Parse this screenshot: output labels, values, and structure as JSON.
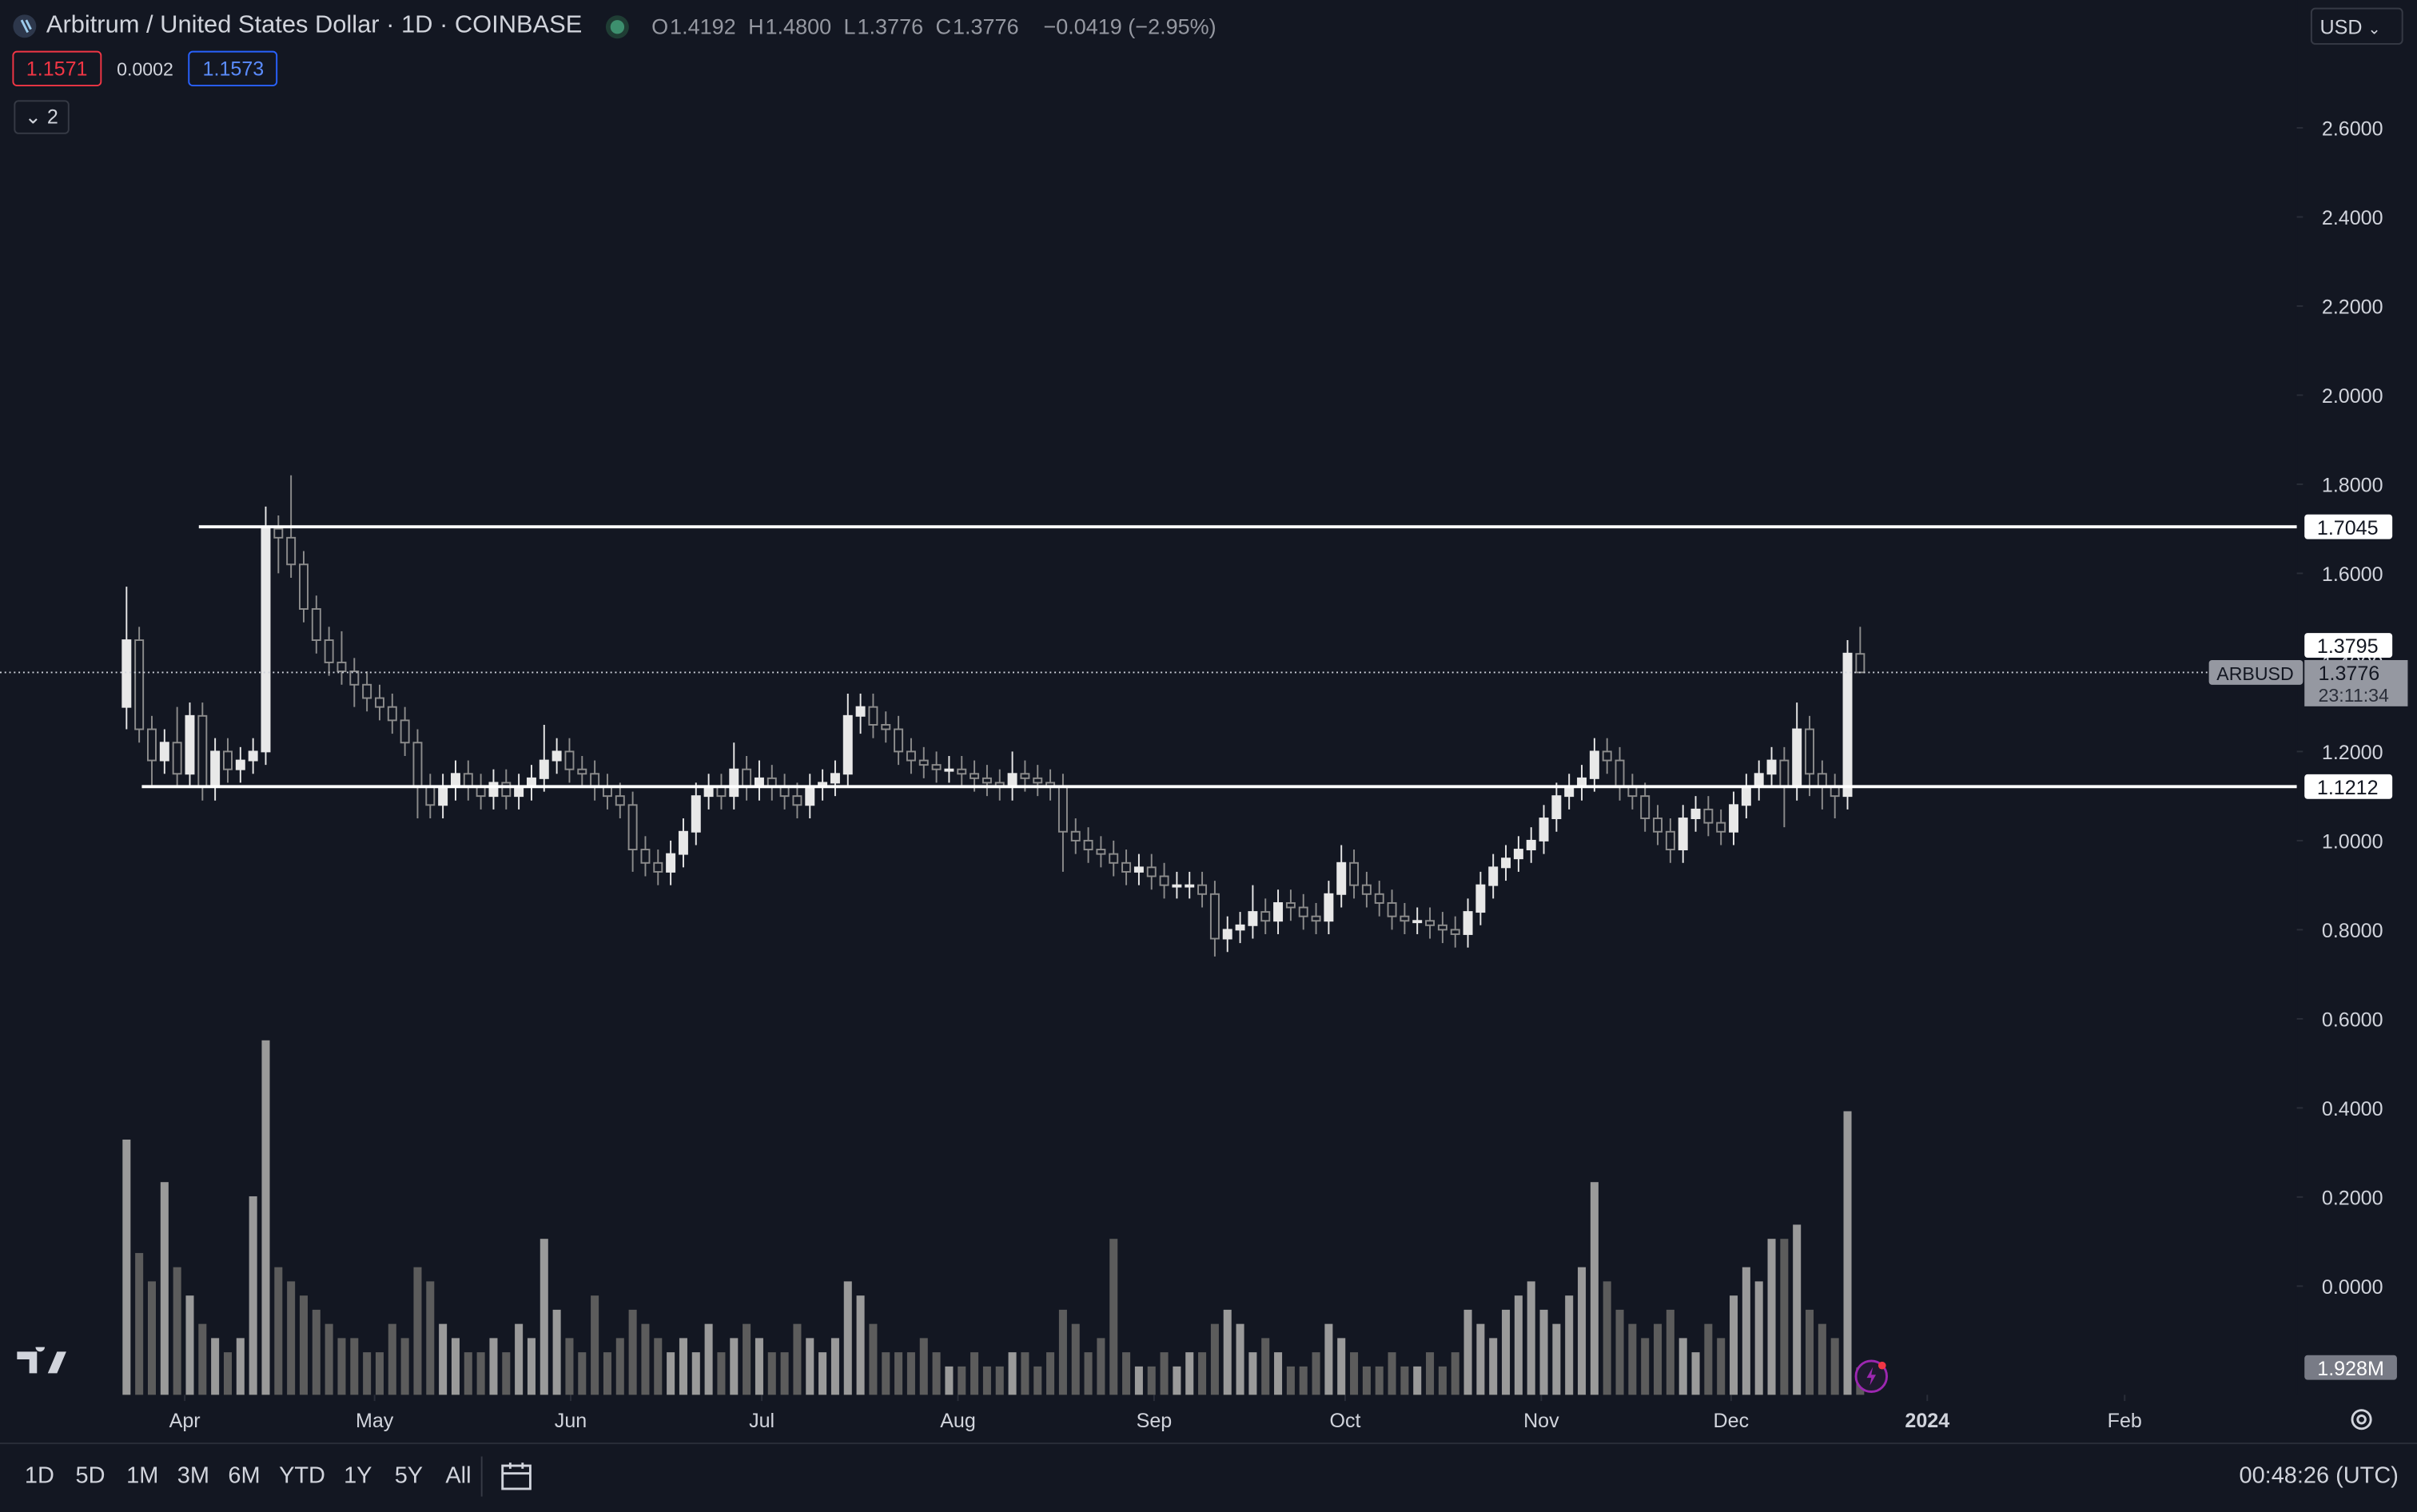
{
  "header": {
    "symbol": "Arbitrum / United States Dollar · 1D · COINBASE",
    "ohlc": [
      {
        "key": "O",
        "value": "1.4192"
      },
      {
        "key": "H",
        "value": "1.4800"
      },
      {
        "key": "L",
        "value": "1.3776"
      },
      {
        "key": "C",
        "value": "1.3776"
      }
    ],
    "change": "−0.0419 (−2.95%)",
    "bid": "1.1571",
    "spread": "0.0002",
    "ask": "1.1573",
    "indicators": "2",
    "currency": "USD"
  },
  "toolbar": {
    "ranges": [
      "1D",
      "5D",
      "1M",
      "3M",
      "6M",
      "YTD",
      "1Y",
      "5Y",
      "All"
    ],
    "clock": "00:48:26 (UTC)"
  },
  "chart_data": {
    "type": "candlestick",
    "up_color": "#e8e8e8",
    "down_color": "#8c8c8c",
    "volume_up_color": "#9a9a9a",
    "volume_down_color": "#5c5c5c",
    "xlim": [
      -10,
      171.5
    ],
    "xticks": [
      {
        "value": 4.6,
        "label": "Apr"
      },
      {
        "value": 19.6,
        "label": "May"
      },
      {
        "value": 35.1,
        "label": "Jun"
      },
      {
        "value": 50.2,
        "label": "Jul"
      },
      {
        "value": 65.7,
        "label": "Aug"
      },
      {
        "value": 81.2,
        "label": "Sep"
      },
      {
        "value": 96.3,
        "label": "Oct"
      },
      {
        "value": 111.8,
        "label": "Nov"
      },
      {
        "value": 126.8,
        "label": "Dec"
      },
      {
        "value": 142.3,
        "label": "2024"
      },
      {
        "value": 157.9,
        "label": "Feb"
      }
    ],
    "ylim": [
      -0.244,
      2.887
    ],
    "yticks": [
      {
        "value": 0,
        "label": "0.0000"
      },
      {
        "value": 0.2,
        "label": "0.2000"
      },
      {
        "value": 0.4,
        "label": "0.4000"
      },
      {
        "value": 0.6,
        "label": "0.6000"
      },
      {
        "value": 0.8,
        "label": "0.8000"
      },
      {
        "value": 1,
        "label": "1.0000"
      },
      {
        "value": 1.2,
        "label": "1.2000"
      },
      {
        "value": 1.4,
        "label": "1.4000"
      },
      {
        "value": 1.6,
        "label": "1.6000"
      },
      {
        "value": 1.8,
        "label": "1.8000"
      },
      {
        "value": 2,
        "label": "2.0000"
      },
      {
        "value": 2.2,
        "label": "2.2000"
      },
      {
        "value": 2.4,
        "label": "2.4000"
      },
      {
        "value": 2.6,
        "label": "2.6000"
      }
    ],
    "hlines": [
      1.7045,
      1.1212
    ],
    "price_labels": [
      1.3795
    ],
    "last_price": 1.3776,
    "symbol_label": "ARBUSD",
    "countdown": "23:11:34",
    "last_volume_label": "1.928M",
    "candles": [
      [
        1.3,
        1.57,
        1.25,
        1.45
      ],
      [
        1.45,
        1.48,
        1.22,
        1.25
      ],
      [
        1.25,
        1.28,
        1.12,
        1.18
      ],
      [
        1.18,
        1.25,
        1.15,
        1.22
      ],
      [
        1.22,
        1.3,
        1.12,
        1.15
      ],
      [
        1.15,
        1.31,
        1.12,
        1.28
      ],
      [
        1.28,
        1.31,
        1.09,
        1.12
      ],
      [
        1.12,
        1.23,
        1.09,
        1.2
      ],
      [
        1.2,
        1.23,
        1.13,
        1.16
      ],
      [
        1.16,
        1.21,
        1.13,
        1.18
      ],
      [
        1.18,
        1.23,
        1.15,
        1.2
      ],
      [
        1.2,
        1.75,
        1.17,
        1.7
      ],
      [
        1.7,
        1.73,
        1.6,
        1.68
      ],
      [
        1.68,
        1.82,
        1.59,
        1.62
      ],
      [
        1.62,
        1.65,
        1.49,
        1.52
      ],
      [
        1.52,
        1.55,
        1.42,
        1.45
      ],
      [
        1.45,
        1.48,
        1.37,
        1.4
      ],
      [
        1.4,
        1.47,
        1.35,
        1.38
      ],
      [
        1.38,
        1.41,
        1.3,
        1.35
      ],
      [
        1.35,
        1.38,
        1.29,
        1.32
      ],
      [
        1.32,
        1.35,
        1.27,
        1.3
      ],
      [
        1.3,
        1.33,
        1.24,
        1.27
      ],
      [
        1.27,
        1.3,
        1.19,
        1.22
      ],
      [
        1.22,
        1.25,
        1.05,
        1.12
      ],
      [
        1.12,
        1.15,
        1.05,
        1.08
      ],
      [
        1.08,
        1.15,
        1.05,
        1.12
      ],
      [
        1.12,
        1.18,
        1.09,
        1.15
      ],
      [
        1.15,
        1.18,
        1.09,
        1.12
      ],
      [
        1.12,
        1.15,
        1.07,
        1.1
      ],
      [
        1.1,
        1.16,
        1.07,
        1.13
      ],
      [
        1.13,
        1.16,
        1.07,
        1.1
      ],
      [
        1.1,
        1.15,
        1.07,
        1.12
      ],
      [
        1.12,
        1.17,
        1.09,
        1.14
      ],
      [
        1.14,
        1.26,
        1.11,
        1.18
      ],
      [
        1.18,
        1.23,
        1.15,
        1.2
      ],
      [
        1.2,
        1.23,
        1.13,
        1.16
      ],
      [
        1.16,
        1.19,
        1.12,
        1.15
      ],
      [
        1.15,
        1.18,
        1.09,
        1.12
      ],
      [
        1.12,
        1.15,
        1.07,
        1.1
      ],
      [
        1.1,
        1.13,
        1.05,
        1.08
      ],
      [
        1.08,
        1.11,
        0.93,
        0.98
      ],
      [
        0.98,
        1.01,
        0.92,
        0.95
      ],
      [
        0.95,
        0.98,
        0.9,
        0.93
      ],
      [
        0.93,
        1.0,
        0.9,
        0.97
      ],
      [
        0.97,
        1.05,
        0.94,
        1.02
      ],
      [
        1.02,
        1.13,
        0.99,
        1.1
      ],
      [
        1.1,
        1.15,
        1.07,
        1.12
      ],
      [
        1.12,
        1.15,
        1.07,
        1.1
      ],
      [
        1.1,
        1.22,
        1.07,
        1.16
      ],
      [
        1.16,
        1.19,
        1.09,
        1.12
      ],
      [
        1.12,
        1.18,
        1.09,
        1.14
      ],
      [
        1.14,
        1.17,
        1.09,
        1.12
      ],
      [
        1.12,
        1.15,
        1.07,
        1.1
      ],
      [
        1.1,
        1.13,
        1.05,
        1.08
      ],
      [
        1.08,
        1.15,
        1.05,
        1.12
      ],
      [
        1.12,
        1.16,
        1.09,
        1.13
      ],
      [
        1.13,
        1.18,
        1.1,
        1.15
      ],
      [
        1.15,
        1.33,
        1.12,
        1.28
      ],
      [
        1.28,
        1.33,
        1.24,
        1.3
      ],
      [
        1.3,
        1.33,
        1.23,
        1.26
      ],
      [
        1.26,
        1.29,
        1.22,
        1.25
      ],
      [
        1.25,
        1.28,
        1.17,
        1.2
      ],
      [
        1.2,
        1.23,
        1.15,
        1.18
      ],
      [
        1.18,
        1.21,
        1.14,
        1.17
      ],
      [
        1.17,
        1.2,
        1.13,
        1.16
      ],
      [
        1.16,
        1.19,
        1.13,
        1.16
      ],
      [
        1.16,
        1.19,
        1.12,
        1.15
      ],
      [
        1.15,
        1.18,
        1.11,
        1.14
      ],
      [
        1.14,
        1.17,
        1.1,
        1.13
      ],
      [
        1.13,
        1.16,
        1.09,
        1.12
      ],
      [
        1.12,
        1.2,
        1.09,
        1.15
      ],
      [
        1.15,
        1.18,
        1.11,
        1.14
      ],
      [
        1.14,
        1.17,
        1.1,
        1.13
      ],
      [
        1.13,
        1.16,
        1.09,
        1.12
      ],
      [
        1.12,
        1.15,
        0.93,
        1.02
      ],
      [
        1.02,
        1.05,
        0.97,
        1.0
      ],
      [
        1.0,
        1.03,
        0.95,
        0.98
      ],
      [
        0.98,
        1.01,
        0.94,
        0.97
      ],
      [
        0.97,
        1.0,
        0.92,
        0.95
      ],
      [
        0.95,
        0.98,
        0.9,
        0.93
      ],
      [
        0.93,
        0.97,
        0.9,
        0.94
      ],
      [
        0.94,
        0.97,
        0.89,
        0.92
      ],
      [
        0.92,
        0.95,
        0.87,
        0.9
      ],
      [
        0.9,
        0.93,
        0.87,
        0.9
      ],
      [
        0.9,
        0.93,
        0.87,
        0.9
      ],
      [
        0.9,
        0.93,
        0.85,
        0.88
      ],
      [
        0.88,
        0.91,
        0.74,
        0.78
      ],
      [
        0.78,
        0.83,
        0.75,
        0.8
      ],
      [
        0.8,
        0.84,
        0.77,
        0.81
      ],
      [
        0.81,
        0.9,
        0.78,
        0.84
      ],
      [
        0.84,
        0.87,
        0.79,
        0.82
      ],
      [
        0.82,
        0.89,
        0.79,
        0.86
      ],
      [
        0.86,
        0.89,
        0.82,
        0.85
      ],
      [
        0.85,
        0.88,
        0.8,
        0.83
      ],
      [
        0.83,
        0.86,
        0.79,
        0.82
      ],
      [
        0.82,
        0.91,
        0.79,
        0.88
      ],
      [
        0.88,
        0.99,
        0.85,
        0.95
      ],
      [
        0.95,
        0.98,
        0.87,
        0.9
      ],
      [
        0.9,
        0.93,
        0.85,
        0.88
      ],
      [
        0.88,
        0.91,
        0.83,
        0.86
      ],
      [
        0.86,
        0.89,
        0.8,
        0.83
      ],
      [
        0.83,
        0.86,
        0.79,
        0.82
      ],
      [
        0.82,
        0.85,
        0.79,
        0.82
      ],
      [
        0.82,
        0.85,
        0.78,
        0.81
      ],
      [
        0.81,
        0.84,
        0.77,
        0.8
      ],
      [
        0.8,
        0.83,
        0.76,
        0.79
      ],
      [
        0.79,
        0.87,
        0.76,
        0.84
      ],
      [
        0.84,
        0.93,
        0.81,
        0.9
      ],
      [
        0.9,
        0.97,
        0.87,
        0.94
      ],
      [
        0.94,
        0.99,
        0.91,
        0.96
      ],
      [
        0.96,
        1.01,
        0.93,
        0.98
      ],
      [
        0.98,
        1.03,
        0.95,
        1.0
      ],
      [
        1.0,
        1.08,
        0.97,
        1.05
      ],
      [
        1.05,
        1.13,
        1.02,
        1.1
      ],
      [
        1.1,
        1.15,
        1.07,
        1.12
      ],
      [
        1.12,
        1.17,
        1.09,
        1.14
      ],
      [
        1.14,
        1.23,
        1.11,
        1.2
      ],
      [
        1.2,
        1.23,
        1.15,
        1.18
      ],
      [
        1.18,
        1.21,
        1.09,
        1.12
      ],
      [
        1.12,
        1.15,
        1.07,
        1.1
      ],
      [
        1.1,
        1.13,
        1.02,
        1.05
      ],
      [
        1.05,
        1.08,
        0.99,
        1.02
      ],
      [
        1.02,
        1.05,
        0.95,
        0.98
      ],
      [
        0.98,
        1.08,
        0.95,
        1.05
      ],
      [
        1.05,
        1.1,
        1.02,
        1.07
      ],
      [
        1.07,
        1.1,
        1.01,
        1.04
      ],
      [
        1.04,
        1.07,
        0.99,
        1.02
      ],
      [
        1.02,
        1.11,
        0.99,
        1.08
      ],
      [
        1.08,
        1.15,
        1.05,
        1.12
      ],
      [
        1.12,
        1.18,
        1.09,
        1.15
      ],
      [
        1.15,
        1.21,
        1.12,
        1.18
      ],
      [
        1.18,
        1.21,
        1.03,
        1.12
      ],
      [
        1.12,
        1.31,
        1.09,
        1.25
      ],
      [
        1.25,
        1.28,
        1.1,
        1.15
      ],
      [
        1.15,
        1.18,
        1.07,
        1.12
      ],
      [
        1.12,
        1.15,
        1.05,
        1.1
      ],
      [
        1.1,
        1.45,
        1.07,
        1.42
      ],
      [
        1.4192,
        1.48,
        1.3776,
        1.3776
      ]
    ],
    "volumes": [
      18,
      10,
      8,
      15,
      9,
      7,
      5,
      4,
      3,
      4,
      14,
      25,
      9,
      8,
      7,
      6,
      5,
      4,
      4,
      3,
      3,
      5,
      4,
      9,
      8,
      5,
      4,
      3,
      3,
      4,
      3,
      5,
      4,
      11,
      6,
      4,
      3,
      7,
      3,
      4,
      6,
      5,
      4,
      3,
      4,
      3,
      5,
      3,
      4,
      5,
      4,
      3,
      3,
      5,
      4,
      3,
      4,
      8,
      7,
      5,
      3,
      3,
      3,
      4,
      3,
      2,
      2,
      3,
      2,
      2,
      3,
      3,
      2,
      3,
      6,
      5,
      3,
      4,
      11,
      3,
      2,
      2,
      3,
      2,
      3,
      3,
      5,
      6,
      5,
      3,
      4,
      3,
      2,
      2,
      3,
      5,
      4,
      3,
      2,
      2,
      3,
      2,
      2,
      3,
      2,
      3,
      6,
      5,
      4,
      6,
      7,
      8,
      6,
      5,
      7,
      9,
      15,
      8,
      6,
      5,
      4,
      5,
      6,
      4,
      3,
      5,
      4,
      7,
      9,
      8,
      11,
      11,
      12,
      6,
      5,
      4,
      20,
      1.928
    ]
  }
}
